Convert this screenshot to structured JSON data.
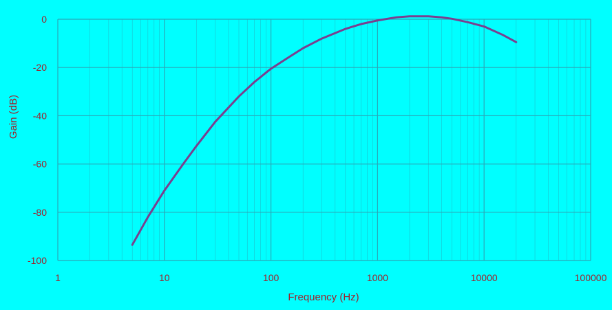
{
  "chart_data": {
    "type": "line",
    "title": "",
    "xlabel": "Frequency (Hz)",
    "ylabel": "Gain (dB)",
    "x_scale": "log",
    "xlim": [
      1,
      100000
    ],
    "ylim": [
      -100,
      0
    ],
    "x_ticks": [
      "1",
      "10",
      "100",
      "1000",
      "10000",
      "100000"
    ],
    "y_ticks": [
      "0",
      "-20",
      "-40",
      "-60",
      "-80",
      "-100"
    ],
    "grid": true,
    "legend": "none",
    "colors": {
      "background": "#00ffff",
      "grid": "#2aa8b8",
      "line": "#7a3f8f",
      "text": "#a0202a"
    },
    "series": [
      {
        "x": [
          5,
          7,
          10,
          15,
          20,
          30,
          50,
          70,
          100,
          150,
          200,
          300,
          500,
          700,
          1000,
          1500,
          2000,
          3000,
          4000,
          5000,
          7000,
          10000,
          15000,
          20000
        ],
        "values": [
          -93.5,
          -82,
          -71,
          -60,
          -52.5,
          -42.5,
          -32,
          -26,
          -20.5,
          -15.5,
          -12,
          -8,
          -4,
          -2,
          -0.5,
          0.8,
          1.2,
          1.2,
          0.8,
          0.2,
          -1.2,
          -3,
          -6.5,
          -9.5
        ]
      }
    ]
  }
}
